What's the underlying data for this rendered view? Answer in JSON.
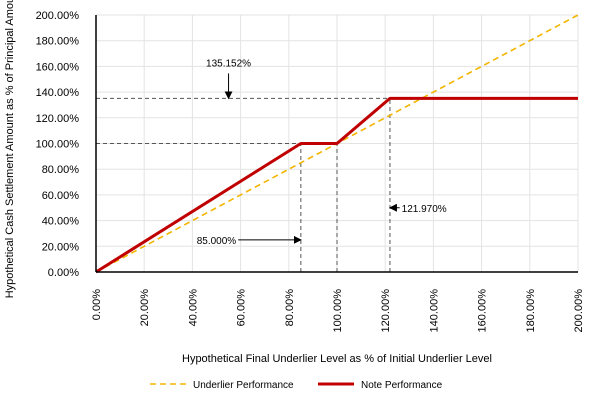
{
  "chart_data": {
    "type": "line",
    "title": "",
    "xlabel": "Hypothetical Final Underlier Level as % of Initial Underlier Level",
    "ylabel": "Hypothetical Cash Settlement Amount as % of Principal Amount",
    "xlim": [
      0,
      200
    ],
    "ylim": [
      0,
      200
    ],
    "x_ticks": [
      0,
      20,
      40,
      60,
      80,
      100,
      120,
      140,
      160,
      180,
      200
    ],
    "y_ticks": [
      0,
      20,
      40,
      60,
      80,
      100,
      120,
      140,
      160,
      180,
      200
    ],
    "x_tick_labels": [
      "0.00%",
      "20.00%",
      "40.00%",
      "60.00%",
      "80.00%",
      "100.00%",
      "120.00%",
      "140.00%",
      "160.00%",
      "180.00%",
      "200.00%"
    ],
    "y_tick_labels": [
      "0.00%",
      "20.00%",
      "40.00%",
      "60.00%",
      "80.00%",
      "100.00%",
      "120.00%",
      "140.00%",
      "160.00%",
      "180.00%",
      "200.00%"
    ],
    "grid": true,
    "legend": "bottom",
    "series": [
      {
        "name": "Underlier Performance",
        "color": "#f2b500",
        "style": "dashed",
        "x": [
          0,
          200
        ],
        "y": [
          0,
          200
        ]
      },
      {
        "name": "Note Performance",
        "color": "#c00000",
        "style": "solid",
        "x": [
          0,
          85,
          100,
          121.97,
          200
        ],
        "y": [
          0,
          100,
          100,
          135.152,
          135.152
        ]
      }
    ],
    "reference_lines": [
      {
        "x0": 0,
        "y0": 135.152,
        "x1": 121.97,
        "y1": 135.152
      },
      {
        "x0": 0,
        "y0": 100,
        "x1": 85,
        "y1": 100
      },
      {
        "x0": 85,
        "y0": 0,
        "x1": 85,
        "y1": 100
      },
      {
        "x0": 100,
        "y0": 0,
        "x1": 100,
        "y1": 100
      },
      {
        "x0": 121.97,
        "y0": 0,
        "x1": 121.97,
        "y1": 135.152
      }
    ],
    "annotations": [
      {
        "text": "135.152%",
        "anchor_x": 55,
        "anchor_y": 160,
        "target_x": 55,
        "target_y": 135.152,
        "align": "middle"
      },
      {
        "text": "85.000%",
        "anchor_x": 59,
        "anchor_y": 25,
        "target_x": 85,
        "target_y": 25,
        "align": "end"
      },
      {
        "text": "121.970%",
        "anchor_x": 126,
        "anchor_y": 50,
        "target_x": 121.97,
        "target_y": 50,
        "align": "start"
      }
    ]
  }
}
